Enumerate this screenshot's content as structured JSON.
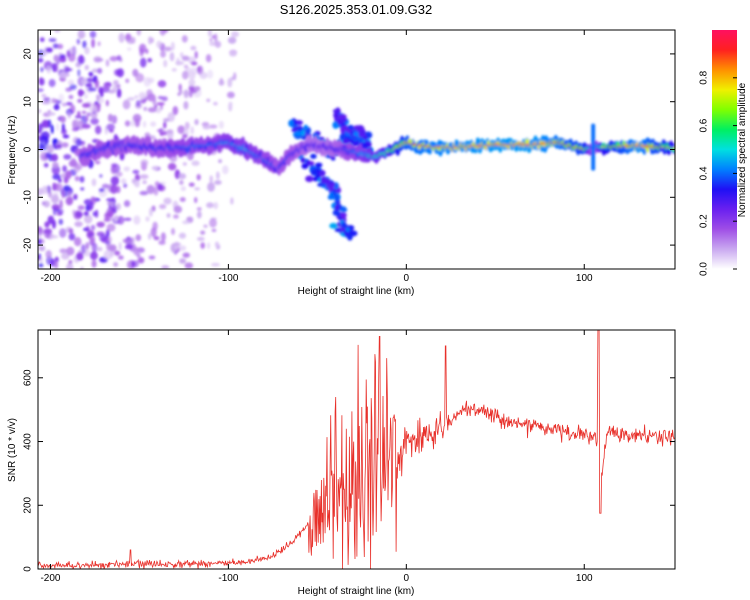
{
  "title": "S126.2025.353.01.09.G32",
  "chart_data": [
    {
      "type": "heatmap",
      "name": "spectrogram",
      "xlabel": "Height of straight line (km)",
      "ylabel": "Frequency (Hz)",
      "xlim": [
        -207,
        151
      ],
      "ylim": [
        -25,
        25
      ],
      "xticks": [
        -200,
        -100,
        0,
        100
      ],
      "yticks": [
        -20,
        -10,
        0,
        10,
        20
      ],
      "colorbar": {
        "label": "Normalized spectral amplitude",
        "range": [
          0,
          1
        ],
        "ticks": [
          "0.0",
          "0.2",
          "0.4",
          "0.6",
          "0.8"
        ],
        "tick_values": [
          0.0,
          0.2,
          0.4,
          0.6,
          0.8
        ],
        "colors": [
          "#ffffff",
          "#c9a8f0",
          "#9f4ee6",
          "#6a20f0",
          "#1f10f5",
          "#0080ff",
          "#00e0e0",
          "#00f060",
          "#80ff00",
          "#f0f000",
          "#ff9000",
          "#ff2020",
          "#ff1060"
        ]
      },
      "ridge": {
        "x": [
          -183,
          -170,
          -155,
          -140,
          -125,
          -110,
          -100,
          -90,
          -80,
          -72,
          -65,
          -55,
          -45,
          -35,
          -25,
          -18,
          -10,
          -5,
          0,
          5,
          15,
          30,
          50,
          70,
          85,
          100,
          105,
          110,
          130,
          151
        ],
        "y": [
          -1.5,
          0.2,
          1.0,
          0.2,
          0.5,
          1.0,
          1.5,
          0.0,
          -2.0,
          -4.0,
          -1.0,
          1.0,
          0.5,
          0.0,
          -1.0,
          -1.5,
          -0.5,
          0.5,
          1.5,
          1.0,
          0.5,
          0.5,
          1.0,
          1.0,
          1.5,
          0.0,
          0.5,
          0.5,
          0.8,
          0.3
        ],
        "amplitude": [
          0.35,
          0.35,
          0.35,
          0.35,
          0.4,
          0.4,
          0.45,
          0.45,
          0.4,
          0.35,
          0.35,
          0.3,
          0.3,
          0.35,
          0.45,
          0.55,
          0.65,
          0.75,
          0.85,
          0.9,
          0.92,
          0.95,
          0.97,
          0.97,
          0.9,
          0.8,
          0.3,
          0.7,
          0.95,
          0.7
        ]
      },
      "scatter_noise_x_range": [
        -207,
        -95
      ],
      "branches": [
        {
          "x": [
            -65,
            -50,
            -40
          ],
          "y": [
            5,
            2,
            -1
          ]
        },
        {
          "x": [
            -60,
            -48,
            -38
          ],
          "y": [
            -1,
            -6,
            -9
          ]
        },
        {
          "x": [
            -40,
            -35,
            -32
          ],
          "y": [
            8,
            4,
            0
          ]
        },
        {
          "x": [
            -40,
            -36,
            -33
          ],
          "y": [
            -10,
            -15,
            -19
          ]
        },
        {
          "x": [
            -30,
            -25,
            -20
          ],
          "y": [
            4,
            2,
            0
          ]
        }
      ]
    },
    {
      "type": "line",
      "name": "snr",
      "xlabel": "Height of straight line (km)",
      "ylabel": "SNR (10 * v/v)",
      "xlim": [
        -207,
        151
      ],
      "ylim": [
        0,
        750
      ],
      "xticks": [
        -200,
        -100,
        0,
        100
      ],
      "yticks": [
        0,
        200,
        400,
        600
      ],
      "color": "#e8302a",
      "trend": {
        "x": [
          -207,
          -150,
          -110,
          -90,
          -80,
          -70,
          -60,
          -50,
          -40,
          -30,
          -25,
          -20,
          -15,
          -10,
          -5,
          0,
          10,
          20,
          30,
          40,
          50,
          60,
          70,
          80,
          90,
          100,
          106,
          110,
          113,
          120,
          151
        ],
        "y": [
          10,
          15,
          18,
          20,
          30,
          55,
          110,
          180,
          240,
          280,
          300,
          310,
          320,
          330,
          340,
          400,
          420,
          440,
          490,
          500,
          480,
          460,
          450,
          440,
          430,
          420,
          415,
          300,
          430,
          420,
          415
        ]
      },
      "spikes": [
        {
          "x": -155,
          "y": 60
        },
        {
          "x": -15,
          "y": 730
        },
        {
          "x": 22,
          "y": 700
        },
        {
          "x": 108,
          "y": 750
        },
        {
          "x": 109,
          "y": 175
        }
      ]
    }
  ]
}
